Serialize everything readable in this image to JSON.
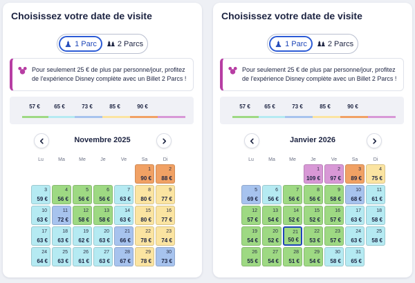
{
  "colors": {
    "c57": "#9ed983",
    "c65": "#b5eaf2",
    "c73": "#a7c3ee",
    "c85": "#fbe4a1",
    "c90": "#f1a164",
    "c109": "#d898d6",
    "accent": "#2c5bd6",
    "promo_border": "#b73ea3"
  },
  "legend_colors": [
    "c57",
    "c65",
    "c73",
    "c85",
    "c90",
    "c109"
  ],
  "icons": {
    "one_park": "mickey-park-icon",
    "two_parks": "two-parks-icon",
    "promo": "mickey-ears-icon",
    "prev": "chevron-left-icon",
    "next": "chevron-right-icon"
  },
  "panels": [
    {
      "title": "Choisissez votre date de visite",
      "toggle": {
        "one_park": "1 Parc",
        "two_parks": "2 Parcs"
      },
      "promo": "Pour seulement 25 € de plus par personne/jour, profitez de l'expérience Disney complète avec un Billet 2 Parcs !",
      "legend": [
        "57 €",
        "65 €",
        "73 €",
        "85 €",
        "90 €"
      ],
      "month": "Novembre 2025",
      "weekdays": [
        "Lu",
        "Ma",
        "Me",
        "Je",
        "Ve",
        "Sa",
        "Di"
      ],
      "start_col": 5,
      "days": [
        {
          "d": "1",
          "p": "90 €",
          "c": "c90"
        },
        {
          "d": "2",
          "p": "88 €",
          "c": "c90"
        },
        {
          "d": "3",
          "p": "59 €",
          "c": "c65"
        },
        {
          "d": "4",
          "p": "56 €",
          "c": "c57"
        },
        {
          "d": "5",
          "p": "56 €",
          "c": "c57"
        },
        {
          "d": "6",
          "p": "56 €",
          "c": "c57"
        },
        {
          "d": "7",
          "p": "63 €",
          "c": "c65"
        },
        {
          "d": "8",
          "p": "80 €",
          "c": "c85"
        },
        {
          "d": "9",
          "p": "77 €",
          "c": "c85"
        },
        {
          "d": "10",
          "p": "63 €",
          "c": "c65"
        },
        {
          "d": "11",
          "p": "72 €",
          "c": "c73"
        },
        {
          "d": "12",
          "p": "58 €",
          "c": "c57"
        },
        {
          "d": "13",
          "p": "58 €",
          "c": "c57"
        },
        {
          "d": "14",
          "p": "63 €",
          "c": "c65"
        },
        {
          "d": "15",
          "p": "80 €",
          "c": "c85"
        },
        {
          "d": "16",
          "p": "77 €",
          "c": "c85"
        },
        {
          "d": "17",
          "p": "63 €",
          "c": "c65"
        },
        {
          "d": "18",
          "p": "63 €",
          "c": "c65"
        },
        {
          "d": "19",
          "p": "62 €",
          "c": "c65"
        },
        {
          "d": "20",
          "p": "63 €",
          "c": "c65"
        },
        {
          "d": "21",
          "p": "66 €",
          "c": "c73"
        },
        {
          "d": "22",
          "p": "78 €",
          "c": "c85"
        },
        {
          "d": "23",
          "p": "74 €",
          "c": "c85"
        },
        {
          "d": "24",
          "p": "64 €",
          "c": "c65"
        },
        {
          "d": "25",
          "p": "63 €",
          "c": "c65"
        },
        {
          "d": "26",
          "p": "61 €",
          "c": "c65"
        },
        {
          "d": "27",
          "p": "63 €",
          "c": "c65"
        },
        {
          "d": "28",
          "p": "67 €",
          "c": "c73"
        },
        {
          "d": "29",
          "p": "78 €",
          "c": "c85"
        },
        {
          "d": "30",
          "p": "73 €",
          "c": "c73"
        }
      ]
    },
    {
      "title": "Choisissez votre date de visite",
      "toggle": {
        "one_park": "1 Parc",
        "two_parks": "2 Parcs"
      },
      "promo": "Pour seulement 25 € de plus par personne/jour, profitez de l'expérience Disney complète avec un Billet 2 Parcs !",
      "legend": [
        "57 €",
        "65 €",
        "73 €",
        "85 €",
        "90 €"
      ],
      "month": "Janvier 2026",
      "weekdays": [
        "Lu",
        "Ma",
        "Me",
        "Je",
        "Ve",
        "Sa",
        "Di"
      ],
      "start_col": 3,
      "days": [
        {
          "d": "1",
          "p": "109 €",
          "c": "c109"
        },
        {
          "d": "2",
          "p": "97 €",
          "c": "c109"
        },
        {
          "d": "3",
          "p": "89 €",
          "c": "c90"
        },
        {
          "d": "4",
          "p": "75 €",
          "c": "c85"
        },
        {
          "d": "5",
          "p": "69 €",
          "c": "c73"
        },
        {
          "d": "6",
          "p": "56 €",
          "c": "c65"
        },
        {
          "d": "7",
          "p": "56 €",
          "c": "c57"
        },
        {
          "d": "8",
          "p": "56 €",
          "c": "c57"
        },
        {
          "d": "9",
          "p": "58 €",
          "c": "c57"
        },
        {
          "d": "10",
          "p": "68 €",
          "c": "c73"
        },
        {
          "d": "11",
          "p": "61 €",
          "c": "c65"
        },
        {
          "d": "12",
          "p": "57 €",
          "c": "c57"
        },
        {
          "d": "13",
          "p": "54 €",
          "c": "c57"
        },
        {
          "d": "14",
          "p": "52 €",
          "c": "c57"
        },
        {
          "d": "15",
          "p": "52 €",
          "c": "c57"
        },
        {
          "d": "16",
          "p": "57 €",
          "c": "c57"
        },
        {
          "d": "17",
          "p": "63 €",
          "c": "c65"
        },
        {
          "d": "18",
          "p": "58 €",
          "c": "c65"
        },
        {
          "d": "19",
          "p": "54 €",
          "c": "c57"
        },
        {
          "d": "20",
          "p": "52 €",
          "c": "c57"
        },
        {
          "d": "21",
          "p": "50 €",
          "c": "c57",
          "selected": true
        },
        {
          "d": "22",
          "p": "53 €",
          "c": "c57"
        },
        {
          "d": "23",
          "p": "57 €",
          "c": "c57"
        },
        {
          "d": "24",
          "p": "63 €",
          "c": "c65"
        },
        {
          "d": "25",
          "p": "58 €",
          "c": "c65"
        },
        {
          "d": "26",
          "p": "55 €",
          "c": "c57"
        },
        {
          "d": "27",
          "p": "54 €",
          "c": "c57"
        },
        {
          "d": "28",
          "p": "51 €",
          "c": "c57"
        },
        {
          "d": "29",
          "p": "54 €",
          "c": "c57"
        },
        {
          "d": "30",
          "p": "58 €",
          "c": "c65"
        },
        {
          "d": "31",
          "p": "65 €",
          "c": "c65"
        }
      ]
    }
  ]
}
